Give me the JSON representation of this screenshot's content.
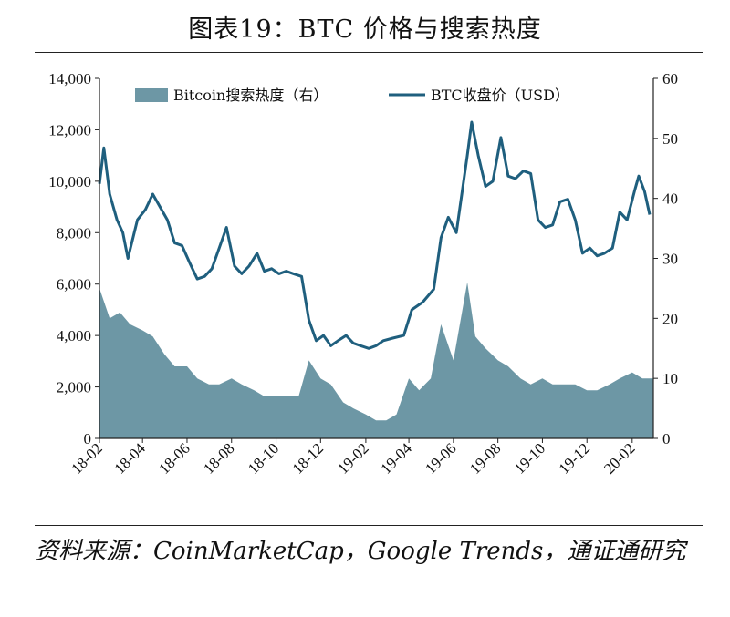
{
  "title": "图表19：BTC 价格与搜索热度",
  "source": "资料来源：CoinMarketCap，Google Trends，通证通研究",
  "colors": {
    "area": "#6d97a5",
    "line": "#1f5f7e",
    "axis": "#222222"
  },
  "chart_data": {
    "type": "area+line",
    "x_tick_labels": [
      "18-02",
      "18-04",
      "18-06",
      "18-08",
      "18-10",
      "18-12",
      "19-02",
      "19-04",
      "19-06",
      "19-08",
      "19-10",
      "19-12",
      "20-02"
    ],
    "x_range": [
      "2018-02",
      "2020-02"
    ],
    "left_axis": {
      "ticks": [
        "0",
        "2,000",
        "4,000",
        "6,000",
        "8,000",
        "10,000",
        "12,000",
        "14,000"
      ],
      "ylim": [
        0,
        14000
      ]
    },
    "right_axis": {
      "ticks": [
        "0",
        "10",
        "20",
        "30",
        "40",
        "50",
        "60"
      ],
      "ylim": [
        0,
        60
      ]
    },
    "legend": {
      "search": "Bitcoin搜索热度（右）",
      "price": "BTC收盘价（USD）"
    },
    "series": [
      {
        "name": "Bitcoin搜索热度（右）",
        "axis": "right",
        "kind": "area",
        "points": [
          [
            "2018-02-01",
            25
          ],
          [
            "2018-02-15",
            20
          ],
          [
            "2018-03-01",
            21
          ],
          [
            "2018-03-15",
            19
          ],
          [
            "2018-04-01",
            18
          ],
          [
            "2018-04-15",
            17
          ],
          [
            "2018-05-01",
            14
          ],
          [
            "2018-05-15",
            12
          ],
          [
            "2018-06-01",
            12
          ],
          [
            "2018-06-15",
            10
          ],
          [
            "2018-07-01",
            9
          ],
          [
            "2018-07-15",
            9
          ],
          [
            "2018-08-01",
            10
          ],
          [
            "2018-08-15",
            9
          ],
          [
            "2018-09-01",
            8
          ],
          [
            "2018-09-15",
            7
          ],
          [
            "2018-10-01",
            7
          ],
          [
            "2018-10-15",
            7
          ],
          [
            "2018-11-01",
            7
          ],
          [
            "2018-11-15",
            13
          ],
          [
            "2018-12-01",
            10
          ],
          [
            "2018-12-15",
            9
          ],
          [
            "2019-01-01",
            6
          ],
          [
            "2019-01-15",
            5
          ],
          [
            "2019-02-01",
            4
          ],
          [
            "2019-02-15",
            3
          ],
          [
            "2019-03-01",
            3
          ],
          [
            "2019-03-15",
            4
          ],
          [
            "2019-04-01",
            10
          ],
          [
            "2019-04-15",
            8
          ],
          [
            "2019-05-01",
            10
          ],
          [
            "2019-05-15",
            19
          ],
          [
            "2019-06-01",
            13
          ],
          [
            "2019-06-20",
            26
          ],
          [
            "2019-07-01",
            17
          ],
          [
            "2019-07-15",
            15
          ],
          [
            "2019-08-01",
            13
          ],
          [
            "2019-08-15",
            12
          ],
          [
            "2019-09-01",
            10
          ],
          [
            "2019-09-15",
            9
          ],
          [
            "2019-10-01",
            10
          ],
          [
            "2019-10-15",
            9
          ],
          [
            "2019-11-01",
            9
          ],
          [
            "2019-11-15",
            9
          ],
          [
            "2019-12-01",
            8
          ],
          [
            "2019-12-15",
            8
          ],
          [
            "2020-01-01",
            9
          ],
          [
            "2020-01-15",
            10
          ],
          [
            "2020-02-01",
            11
          ],
          [
            "2020-02-15",
            10
          ]
        ]
      },
      {
        "name": "BTC收盘价（USD）",
        "axis": "left",
        "kind": "line",
        "points": [
          [
            "2018-02-01",
            9900
          ],
          [
            "2018-02-07",
            11300
          ],
          [
            "2018-02-15",
            9500
          ],
          [
            "2018-02-25",
            8500
          ],
          [
            "2018-03-05",
            8000
          ],
          [
            "2018-03-12",
            7000
          ],
          [
            "2018-03-25",
            8500
          ],
          [
            "2018-04-05",
            8900
          ],
          [
            "2018-04-15",
            9500
          ],
          [
            "2018-04-25",
            9000
          ],
          [
            "2018-05-05",
            8500
          ],
          [
            "2018-05-15",
            7600
          ],
          [
            "2018-05-25",
            7500
          ],
          [
            "2018-06-05",
            6800
          ],
          [
            "2018-06-15",
            6200
          ],
          [
            "2018-06-25",
            6300
          ],
          [
            "2018-07-05",
            6600
          ],
          [
            "2018-07-15",
            7400
          ],
          [
            "2018-07-25",
            8200
          ],
          [
            "2018-08-05",
            6700
          ],
          [
            "2018-08-15",
            6400
          ],
          [
            "2018-08-25",
            6700
          ],
          [
            "2018-09-05",
            7200
          ],
          [
            "2018-09-15",
            6500
          ],
          [
            "2018-09-25",
            6600
          ],
          [
            "2018-10-05",
            6400
          ],
          [
            "2018-10-15",
            6500
          ],
          [
            "2018-10-25",
            6400
          ],
          [
            "2018-11-05",
            6300
          ],
          [
            "2018-11-15",
            4600
          ],
          [
            "2018-11-25",
            3800
          ],
          [
            "2018-12-05",
            4000
          ],
          [
            "2018-12-15",
            3600
          ],
          [
            "2018-12-25",
            3800
          ],
          [
            "2019-01-05",
            4000
          ],
          [
            "2019-01-15",
            3700
          ],
          [
            "2019-01-25",
            3600
          ],
          [
            "2019-02-05",
            3500
          ],
          [
            "2019-02-15",
            3600
          ],
          [
            "2019-02-25",
            3800
          ],
          [
            "2019-03-10",
            3900
          ],
          [
            "2019-03-25",
            4000
          ],
          [
            "2019-04-05",
            5000
          ],
          [
            "2019-04-20",
            5300
          ],
          [
            "2019-05-05",
            5800
          ],
          [
            "2019-05-15",
            7800
          ],
          [
            "2019-05-25",
            8600
          ],
          [
            "2019-06-05",
            8000
          ],
          [
            "2019-06-20",
            11000
          ],
          [
            "2019-06-26",
            12300
          ],
          [
            "2019-07-05",
            11000
          ],
          [
            "2019-07-15",
            9800
          ],
          [
            "2019-07-25",
            10000
          ],
          [
            "2019-08-05",
            11700
          ],
          [
            "2019-08-15",
            10200
          ],
          [
            "2019-08-25",
            10100
          ],
          [
            "2019-09-05",
            10400
          ],
          [
            "2019-09-15",
            10300
          ],
          [
            "2019-09-25",
            8500
          ],
          [
            "2019-10-05",
            8200
          ],
          [
            "2019-10-15",
            8300
          ],
          [
            "2019-10-25",
            9200
          ],
          [
            "2019-11-05",
            9300
          ],
          [
            "2019-11-15",
            8500
          ],
          [
            "2019-11-25",
            7200
          ],
          [
            "2019-12-05",
            7400
          ],
          [
            "2019-12-15",
            7100
          ],
          [
            "2019-12-25",
            7200
          ],
          [
            "2020-01-05",
            7400
          ],
          [
            "2020-01-15",
            8800
          ],
          [
            "2020-01-25",
            8500
          ],
          [
            "2020-02-05",
            9700
          ],
          [
            "2020-02-10",
            10200
          ],
          [
            "2020-02-18",
            9600
          ],
          [
            "2020-02-25",
            8700
          ]
        ]
      }
    ]
  }
}
